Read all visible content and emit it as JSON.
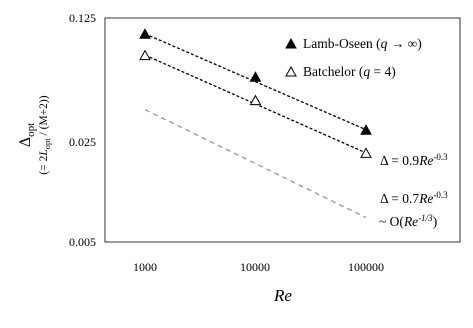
{
  "chart_data": {
    "type": "scatter",
    "x_scale": "log",
    "y_scale": "log",
    "xlim": [
      1000,
      100000
    ],
    "ylim": [
      0.005,
      0.125
    ],
    "x_ticks": [
      "1000",
      "10000",
      "100000"
    ],
    "x_tick_values": [
      1000,
      10000,
      100000
    ],
    "y_ticks": [
      "0.125",
      "0.025",
      "0.005"
    ],
    "y_tick_values": [
      0.125,
      0.025,
      0.005
    ],
    "xlabel": "Re",
    "ylabel_main": "Δ",
    "ylabel_sub": "opt",
    "ylabel_note_prefix": "(= 2",
    "ylabel_note_L": "L",
    "ylabel_note_Lsub": "opt",
    "ylabel_note_suffix": " / (M+2))",
    "grid": false,
    "legend_position": "top-right",
    "series": [
      {
        "name": "Lamb-Oseen (q → ∞)",
        "name_parts": [
          "Lamb-Oseen (",
          "q",
          " → ∞)"
        ],
        "marker": "filled-triangle",
        "x": [
          1000,
          10000,
          100000
        ],
        "y": [
          0.0996,
          0.0537,
          0.0251
        ],
        "fit": {
          "x": [
            1000,
            100000
          ],
          "y": [
            0.0996,
            0.0251
          ],
          "label_parts": [
            "Δ = 0.9",
            "Re",
            "-0.3"
          ]
        }
      },
      {
        "name": "Batchelor (q = 4)",
        "name_parts": [
          "Batchelor (",
          "q",
          " = 4)"
        ],
        "marker": "open-triangle",
        "x": [
          1000,
          10000,
          100000
        ],
        "y": [
          0.0733,
          0.0384,
          0.018
        ],
        "fit": {
          "x": [
            1000,
            100000
          ],
          "y": [
            0.0733,
            0.018
          ],
          "label_parts": [
            "Δ = 0.7",
            "Re",
            "-0.3"
          ]
        }
      }
    ],
    "reference_line": {
      "x": [
        1000,
        100000
      ],
      "y": [
        0.0335,
        0.0071
      ],
      "color": "#999999",
      "label_parts": [
        "~ O(",
        "Re",
        "-1/3",
        ")"
      ]
    }
  }
}
